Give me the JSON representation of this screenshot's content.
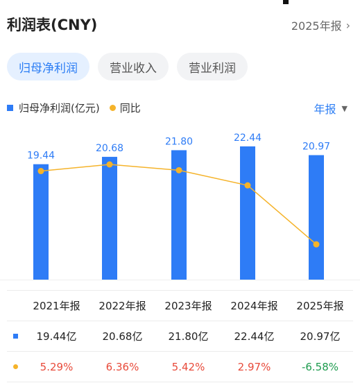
{
  "header": {
    "title": "利润表(CNY)",
    "period": "2025年报"
  },
  "tabs": [
    {
      "label": "归母净利润",
      "active": true
    },
    {
      "label": "营业收入",
      "active": false
    },
    {
      "label": "营业利润",
      "active": false
    }
  ],
  "legend": {
    "bar": "归母净利润(亿元)",
    "line": "同比"
  },
  "period_select": "年报",
  "colors": {
    "bar": "#2e7cf6",
    "line": "#f5b32a",
    "accent": "#2b7df4",
    "positive": "#e84a3a",
    "negative": "#1d9b4e"
  },
  "chart_data": {
    "type": "bar",
    "categories": [
      "2021年报",
      "2022年报",
      "2023年报",
      "2024年报",
      "2025年报"
    ],
    "series": [
      {
        "name": "归母净利润(亿元)",
        "type": "bar",
        "values": [
          19.44,
          20.68,
          21.8,
          22.44,
          20.97
        ]
      },
      {
        "name": "同比",
        "type": "line",
        "values": [
          5.29,
          6.36,
          5.42,
          2.97,
          -6.58
        ]
      }
    ],
    "value_labels": [
      "19.44",
      "20.68",
      "21.80",
      "22.44",
      "20.97"
    ]
  },
  "table": {
    "headers": [
      "2021年报",
      "2022年报",
      "2023年报",
      "2024年报",
      "2025年报"
    ],
    "profit": [
      "19.44亿",
      "20.68亿",
      "21.80亿",
      "22.44亿",
      "20.97亿"
    ],
    "yoy": [
      "5.29%",
      "6.36%",
      "5.42%",
      "2.97%",
      "-6.58%"
    ]
  }
}
